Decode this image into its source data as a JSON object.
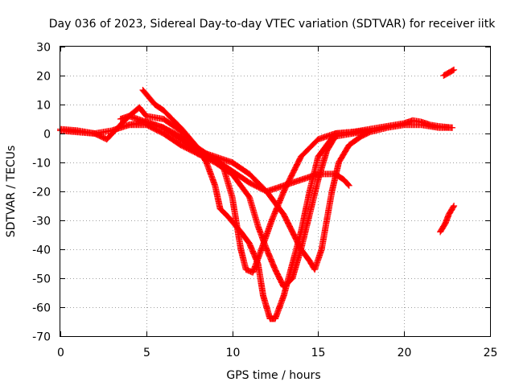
{
  "chart_data": {
    "type": "scatter",
    "title": "Day 036 of 2023, Sidereal Day-to-day VTEC variation (SDTVAR) for receiver iitk",
    "xlabel": "GPS time / hours",
    "ylabel": "SDTVAR / TECUs",
    "xlim": [
      0,
      25
    ],
    "ylim": [
      -70,
      30
    ],
    "xticks": [
      0,
      5,
      10,
      15,
      20,
      25
    ],
    "yticks": [
      -70,
      -60,
      -50,
      -40,
      -30,
      -20,
      -10,
      0,
      10,
      20,
      30
    ],
    "grid": true,
    "marker": "plus",
    "series_color": "#ff0000",
    "series": [
      {
        "name": "track-1",
        "points": [
          [
            0,
            1
          ],
          [
            1,
            0.5
          ],
          [
            2,
            0
          ],
          [
            3,
            1
          ],
          [
            4,
            3
          ],
          [
            5,
            3
          ],
          [
            6,
            0
          ],
          [
            7,
            -4
          ],
          [
            8,
            -7
          ],
          [
            9,
            -9
          ],
          [
            10,
            -13
          ],
          [
            11,
            -17
          ],
          [
            12,
            -20
          ],
          [
            13,
            -18
          ],
          [
            14,
            -16
          ],
          [
            15,
            -14
          ],
          [
            16,
            -14
          ],
          [
            16.5,
            -16
          ],
          [
            16.8,
            -18
          ]
        ]
      },
      {
        "name": "track-2",
        "points": [
          [
            0,
            1.5
          ],
          [
            1,
            1
          ],
          [
            2,
            0
          ],
          [
            2.7,
            -2
          ],
          [
            3.5,
            3
          ],
          [
            4,
            6
          ],
          [
            4.6,
            9
          ],
          [
            5,
            6
          ],
          [
            6,
            5
          ],
          [
            7,
            1
          ],
          [
            8,
            -5
          ],
          [
            9,
            -9
          ],
          [
            9.5,
            -12
          ],
          [
            10,
            -22
          ],
          [
            10.5,
            -40
          ],
          [
            10.8,
            -47
          ],
          [
            11.2,
            -48
          ],
          [
            11.7,
            -40
          ],
          [
            12.3,
            -30
          ],
          [
            13,
            -20
          ],
          [
            14,
            -8
          ],
          [
            15,
            -2
          ],
          [
            16,
            0
          ],
          [
            17,
            0.5
          ]
        ]
      },
      {
        "name": "track-3",
        "points": [
          [
            4.8,
            15
          ],
          [
            5.5,
            10
          ],
          [
            6,
            8
          ],
          [
            7,
            2
          ],
          [
            8,
            -5
          ],
          [
            8.5,
            -10
          ],
          [
            9,
            -18
          ],
          [
            9.3,
            -26
          ],
          [
            9.8,
            -29
          ],
          [
            10.5,
            -34
          ],
          [
            11,
            -38
          ],
          [
            11.5,
            -45
          ],
          [
            11.8,
            -56
          ],
          [
            12,
            -60
          ],
          [
            12.2,
            -64
          ],
          [
            12.5,
            -64
          ],
          [
            13,
            -56
          ],
          [
            13.5,
            -45
          ],
          [
            14,
            -34
          ],
          [
            14.5,
            -20
          ],
          [
            15,
            -8
          ],
          [
            16,
            0
          ],
          [
            17,
            0.5
          ],
          [
            18,
            1
          ]
        ]
      },
      {
        "name": "track-4",
        "points": [
          [
            3.5,
            5
          ],
          [
            4,
            6
          ],
          [
            5,
            4
          ],
          [
            6,
            2
          ],
          [
            7,
            -1
          ],
          [
            8,
            -7
          ],
          [
            9,
            -10
          ],
          [
            10,
            -14
          ],
          [
            11,
            -22
          ],
          [
            11.5,
            -32
          ],
          [
            12,
            -40
          ],
          [
            12.5,
            -47
          ],
          [
            13,
            -53
          ],
          [
            13.5,
            -50
          ],
          [
            14,
            -40
          ],
          [
            14.5,
            -28
          ],
          [
            15,
            -16
          ],
          [
            15.5,
            -6
          ],
          [
            16,
            -1
          ],
          [
            17,
            0
          ],
          [
            18,
            1
          ]
        ]
      },
      {
        "name": "track-5",
        "points": [
          [
            4,
            3
          ],
          [
            5,
            4
          ],
          [
            6,
            2
          ],
          [
            7,
            -2
          ],
          [
            8,
            -6
          ],
          [
            9,
            -8
          ],
          [
            10,
            -10
          ],
          [
            11,
            -14
          ],
          [
            12,
            -20
          ],
          [
            13,
            -28
          ],
          [
            13.5,
            -34
          ],
          [
            14,
            -40
          ],
          [
            14.5,
            -44
          ],
          [
            14.8,
            -47
          ],
          [
            15.2,
            -40
          ],
          [
            15.5,
            -30
          ],
          [
            15.8,
            -20
          ],
          [
            16.2,
            -10
          ],
          [
            16.8,
            -4
          ],
          [
            17.5,
            -1
          ],
          [
            18,
            0.5
          ],
          [
            19,
            2
          ],
          [
            20,
            3
          ],
          [
            21,
            3
          ],
          [
            22,
            2
          ],
          [
            22.8,
            2
          ]
        ]
      },
      {
        "name": "track-6",
        "points": [
          [
            17,
            0.5
          ],
          [
            18,
            1.5
          ],
          [
            19,
            2.5
          ],
          [
            20,
            3.5
          ],
          [
            20.5,
            4.5
          ],
          [
            21,
            4
          ],
          [
            21.5,
            3
          ],
          [
            22,
            2.5
          ],
          [
            22.8,
            2
          ]
        ]
      },
      {
        "name": "track-7",
        "points": [
          [
            22.3,
            20
          ],
          [
            22.6,
            21
          ],
          [
            22.9,
            22
          ]
        ]
      },
      {
        "name": "track-8",
        "points": [
          [
            22.1,
            -34
          ],
          [
            22.4,
            -31
          ],
          [
            22.6,
            -28
          ],
          [
            22.9,
            -25
          ]
        ]
      }
    ]
  }
}
